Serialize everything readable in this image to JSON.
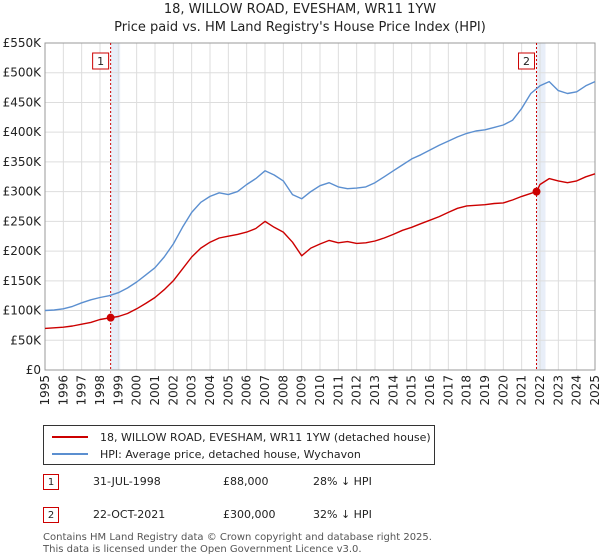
{
  "title_line1": "18, WILLOW ROAD, EVESHAM, WR11 1YW",
  "title_line2": "Price paid vs. HM Land Registry's House Price Index (HPI)",
  "colors": {
    "property": "#cc0000",
    "hpi": "#5b8fd0",
    "marker": "#cc0000",
    "grid": "#dddddd",
    "shade": "#e8eef8"
  },
  "legend": {
    "property_label": "18, WILLOW ROAD, EVESHAM, WR11 1YW (detached house)",
    "hpi_label": "HPI: Average price, detached house, Wychavon"
  },
  "transactions": [
    {
      "num": "1",
      "date": "31-JUL-1998",
      "price": "£88,000",
      "delta": "28% ↓ HPI"
    },
    {
      "num": "2",
      "date": "22-OCT-2021",
      "price": "£300,000",
      "delta": "32% ↓ HPI"
    }
  ],
  "footer_line1": "Contains HM Land Registry data © Crown copyright and database right 2025.",
  "footer_line2": "This data is licensed under the Open Government Licence v3.0.",
  "chart_data": {
    "type": "line",
    "title": "18, WILLOW ROAD, EVESHAM, WR11 1YW",
    "subtitle": "Price paid vs. HM Land Registry's House Price Index (HPI)",
    "xlabel": "",
    "ylabel": "",
    "xlim": [
      1995,
      2025
    ],
    "ylim": [
      0,
      550000
    ],
    "y_ticks": [
      0,
      50000,
      100000,
      150000,
      200000,
      250000,
      300000,
      350000,
      400000,
      450000,
      500000,
      550000
    ],
    "y_tick_labels": [
      "£0",
      "£50K",
      "£100K",
      "£150K",
      "£200K",
      "£250K",
      "£300K",
      "£350K",
      "£400K",
      "£450K",
      "£500K",
      "£550K"
    ],
    "x_ticks": [
      1995,
      1996,
      1997,
      1998,
      1999,
      2000,
      2001,
      2002,
      2003,
      2004,
      2005,
      2006,
      2007,
      2008,
      2009,
      2010,
      2011,
      2012,
      2013,
      2014,
      2015,
      2016,
      2017,
      2018,
      2019,
      2020,
      2021,
      2022,
      2023,
      2024,
      2025
    ],
    "x_tick_labels": [
      "1995",
      "1996",
      "1997",
      "1998",
      "1999",
      "2000",
      "2001",
      "2002",
      "2003",
      "2004",
      "2005",
      "2006",
      "2007",
      "2008",
      "2009",
      "2010",
      "2011",
      "2012",
      "2013",
      "2014",
      "2015",
      "2016",
      "2017",
      "2018",
      "2019",
      "2020",
      "2021",
      "2022",
      "2023",
      "2024",
      "2025"
    ],
    "grid": true,
    "shaded_periods": [
      [
        1998.58,
        1999.1
      ],
      [
        2021.81,
        2022.3
      ]
    ],
    "annotations": [
      {
        "label": "1",
        "x": 1998.58,
        "y": 88000
      },
      {
        "label": "2",
        "x": 2021.81,
        "y": 300000
      }
    ],
    "series": [
      {
        "name": "18, WILLOW ROAD, EVESHAM, WR11 1YW (detached house)",
        "x": [
          1995,
          1995.5,
          1996,
          1996.5,
          1997,
          1997.5,
          1998,
          1998.58,
          1999,
          1999.5,
          2000,
          2000.5,
          2001,
          2001.5,
          2002,
          2002.5,
          2003,
          2003.5,
          2004,
          2004.5,
          2005,
          2005.5,
          2006,
          2006.5,
          2007,
          2007.5,
          2008,
          2008.5,
          2009,
          2009.5,
          2010,
          2010.5,
          2011,
          2011.5,
          2012,
          2012.5,
          2013,
          2013.5,
          2014,
          2014.5,
          2015,
          2015.5,
          2016,
          2016.5,
          2017,
          2017.5,
          2018,
          2018.5,
          2019,
          2019.5,
          2020,
          2020.5,
          2021,
          2021.5,
          2021.81,
          2022,
          2022.5,
          2023,
          2023.5,
          2024,
          2024.5,
          2025
        ],
        "values": [
          70000,
          71000,
          72000,
          74000,
          77000,
          80000,
          85000,
          88000,
          90000,
          95000,
          103000,
          112000,
          122000,
          135000,
          150000,
          170000,
          190000,
          205000,
          215000,
          222000,
          225000,
          228000,
          232000,
          238000,
          250000,
          240000,
          232000,
          215000,
          192000,
          205000,
          212000,
          218000,
          214000,
          216000,
          213000,
          214000,
          217000,
          222000,
          228000,
          235000,
          240000,
          246000,
          252000,
          258000,
          265000,
          272000,
          276000,
          277000,
          278000,
          280000,
          281000,
          286000,
          292000,
          297000,
          300000,
          312000,
          322000,
          318000,
          315000,
          318000,
          325000,
          330000
        ]
      },
      {
        "name": "HPI: Average price, detached house, Wychavon",
        "x": [
          1995,
          1995.5,
          1996,
          1996.5,
          1997,
          1997.5,
          1998,
          1998.5,
          1999,
          1999.5,
          2000,
          2000.5,
          2001,
          2001.5,
          2002,
          2002.5,
          2003,
          2003.5,
          2004,
          2004.5,
          2005,
          2005.5,
          2006,
          2006.5,
          2007,
          2007.5,
          2008,
          2008.5,
          2009,
          2009.5,
          2010,
          2010.5,
          2011,
          2011.5,
          2012,
          2012.5,
          2013,
          2013.5,
          2014,
          2014.5,
          2015,
          2015.5,
          2016,
          2016.5,
          2017,
          2017.5,
          2018,
          2018.5,
          2019,
          2019.5,
          2020,
          2020.5,
          2021,
          2021.5,
          2022,
          2022.5,
          2023,
          2023.5,
          2024,
          2024.5,
          2025
        ],
        "values": [
          100000,
          101000,
          103000,
          107000,
          113000,
          118000,
          122000,
          125000,
          130000,
          138000,
          148000,
          160000,
          172000,
          190000,
          212000,
          240000,
          265000,
          282000,
          292000,
          298000,
          295000,
          300000,
          312000,
          322000,
          335000,
          328000,
          318000,
          295000,
          288000,
          300000,
          310000,
          315000,
          308000,
          305000,
          306000,
          308000,
          315000,
          325000,
          335000,
          345000,
          355000,
          362000,
          370000,
          378000,
          385000,
          392000,
          398000,
          402000,
          404000,
          408000,
          412000,
          420000,
          440000,
          465000,
          478000,
          485000,
          470000,
          465000,
          468000,
          478000,
          485000
        ]
      }
    ]
  }
}
